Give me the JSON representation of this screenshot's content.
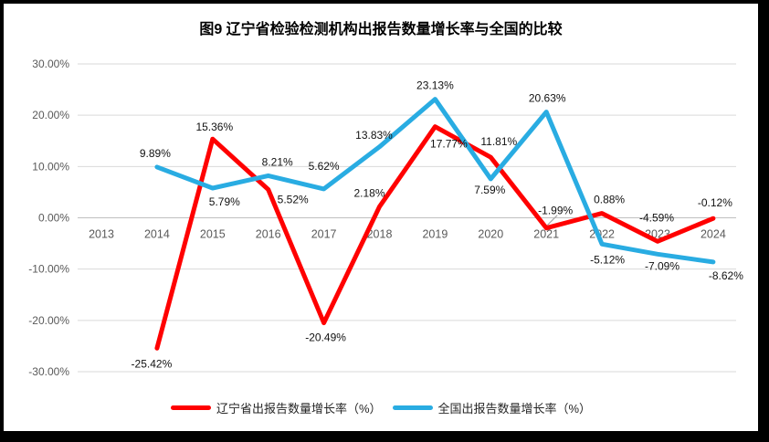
{
  "chart_data": {
    "type": "line",
    "title": "图9  辽宁省检验检测机构出报告数量增长率与全国的比较",
    "categories": [
      "2013",
      "2014",
      "2015",
      "2016",
      "2017",
      "2018",
      "2019",
      "2020",
      "2021",
      "2022",
      "2023",
      "2024"
    ],
    "y_axis": {
      "min": -30,
      "max": 30,
      "step": 10,
      "ticks": [
        "30.00%",
        "20.00%",
        "10.00%",
        "0.00%",
        "-10.00%",
        "-20.00%",
        "-30.00%"
      ]
    },
    "grid": true,
    "legend_position": "bottom",
    "series": [
      {
        "name": "辽宁省出报告数量增长率（%）",
        "color": "#FF0000",
        "values": [
          null,
          -25.42,
          15.36,
          5.52,
          -20.49,
          2.18,
          17.77,
          11.81,
          -1.99,
          0.88,
          -4.59,
          -0.12
        ],
        "labels": [
          null,
          "-25.42%",
          "15.36%",
          "5.52%",
          "-20.49%",
          "2.18%",
          "17.77%",
          "11.81%",
          "-1.99%",
          "0.88%",
          "-4.59%",
          "-0.12%"
        ]
      },
      {
        "name": "全国出报告数量增长率（%）",
        "color": "#29ACE2",
        "values": [
          null,
          9.89,
          5.79,
          8.21,
          5.62,
          13.83,
          23.13,
          7.59,
          20.63,
          -5.12,
          -7.09,
          -8.62
        ],
        "labels": [
          null,
          "9.89%",
          "5.79%",
          "8.21%",
          "5.62%",
          "13.83%",
          "23.13%",
          "7.59%",
          "20.63%",
          "-5.12%",
          "-7.09%",
          "-8.62%"
        ]
      }
    ]
  },
  "colors": {
    "gridline": "#D9D9D9",
    "zero_line": "#BFBFBF",
    "leader_line": "#A6A6A6",
    "frame": "#000000"
  }
}
